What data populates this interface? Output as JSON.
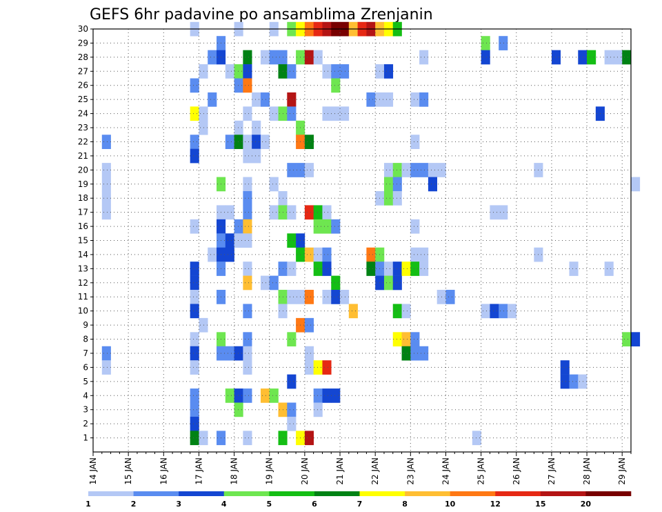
{
  "chart_data": {
    "type": "heatmap",
    "title": "GEFS 6hr padavine po ansamblima Zrenjanin",
    "x_tick_labels": [
      "14 JAN",
      "15 JAN",
      "16 JAN",
      "17 JAN",
      "18 JAN",
      "19 JAN",
      "20 JAN",
      "21 JAN",
      "22 JAN",
      "23 JAN",
      "24 JAN",
      "25 JAN",
      "26 JAN",
      "27 JAN",
      "28 JAN",
      "29 JAN"
    ],
    "y_tick_labels": [
      "1",
      "2",
      "3",
      "4",
      "5",
      "6",
      "7",
      "8",
      "9",
      "10",
      "11",
      "12",
      "13",
      "14",
      "15",
      "16",
      "17",
      "18",
      "19",
      "20",
      "21",
      "22",
      "23",
      "24",
      "25",
      "26",
      "27",
      "28",
      "29",
      "30"
    ],
    "x_unit": "6h steps from 14 JAN 00Z",
    "xlim": [
      0,
      61
    ],
    "ylim": [
      0,
      30
    ],
    "grid": true,
    "legend": {
      "placement": "bottom",
      "labels": [
        "1",
        "2",
        "3",
        "4",
        "5",
        "6",
        "7",
        "8",
        "10",
        "12",
        "15",
        "20"
      ],
      "colors": [
        "#b4c8f5",
        "#5a8cf0",
        "#1446d2",
        "#6ee650",
        "#14be14",
        "#008214",
        "#ffff00",
        "#ffbe32",
        "#ff7814",
        "#e62814",
        "#b41414",
        "#780000"
      ]
    },
    "color_levels": [
      "#b4c8f5",
      "#5a8cf0",
      "#1446d2",
      "#6ee650",
      "#14be14",
      "#008214",
      "#ffff00",
      "#ffbe32",
      "#ff7814",
      "#e62814",
      "#b41414",
      "#780000"
    ],
    "cells": [
      [
        30,
        11,
        0
      ],
      [
        30,
        16,
        0
      ],
      [
        30,
        20,
        0
      ],
      [
        30,
        22,
        3
      ],
      [
        30,
        23,
        6
      ],
      [
        30,
        24,
        8
      ],
      [
        30,
        25,
        9
      ],
      [
        30,
        26,
        10
      ],
      [
        30,
        27,
        11
      ],
      [
        30,
        28,
        11
      ],
      [
        30,
        29,
        7
      ],
      [
        30,
        30,
        9
      ],
      [
        30,
        31,
        10
      ],
      [
        30,
        32,
        7
      ],
      [
        30,
        33,
        6
      ],
      [
        30,
        34,
        4
      ],
      [
        29,
        14,
        1
      ],
      [
        29,
        44,
        3
      ],
      [
        29,
        46,
        1
      ],
      [
        28,
        13,
        1
      ],
      [
        28,
        14,
        2
      ],
      [
        28,
        17,
        5
      ],
      [
        28,
        19,
        0
      ],
      [
        28,
        20,
        1
      ],
      [
        28,
        21,
        1
      ],
      [
        28,
        23,
        3
      ],
      [
        28,
        24,
        10
      ],
      [
        28,
        25,
        0
      ],
      [
        28,
        37,
        0
      ],
      [
        28,
        44,
        2
      ],
      [
        28,
        52,
        2
      ],
      [
        28,
        55,
        2
      ],
      [
        28,
        56,
        4
      ],
      [
        28,
        58,
        0
      ],
      [
        28,
        59,
        0
      ],
      [
        28,
        60,
        5
      ],
      [
        27,
        12,
        0
      ],
      [
        27,
        15,
        0
      ],
      [
        27,
        16,
        3
      ],
      [
        27,
        17,
        2
      ],
      [
        27,
        21,
        5
      ],
      [
        27,
        22,
        1
      ],
      [
        27,
        26,
        0
      ],
      [
        27,
        27,
        1
      ],
      [
        27,
        28,
        1
      ],
      [
        27,
        32,
        0
      ],
      [
        27,
        33,
        2
      ],
      [
        26,
        11,
        1
      ],
      [
        26,
        16,
        1
      ],
      [
        26,
        17,
        8
      ],
      [
        26,
        27,
        3
      ],
      [
        25,
        13,
        1
      ],
      [
        25,
        18,
        0
      ],
      [
        25,
        19,
        1
      ],
      [
        25,
        22,
        10
      ],
      [
        25,
        31,
        1
      ],
      [
        25,
        32,
        0
      ],
      [
        25,
        33,
        0
      ],
      [
        25,
        36,
        0
      ],
      [
        25,
        37,
        1
      ],
      [
        24,
        11,
        6
      ],
      [
        24,
        12,
        0
      ],
      [
        24,
        17,
        0
      ],
      [
        24,
        20,
        0
      ],
      [
        24,
        21,
        3
      ],
      [
        24,
        22,
        1
      ],
      [
        24,
        26,
        0
      ],
      [
        24,
        27,
        0
      ],
      [
        24,
        28,
        0
      ],
      [
        24,
        57,
        2
      ],
      [
        23,
        12,
        0
      ],
      [
        23,
        16,
        0
      ],
      [
        23,
        18,
        0
      ],
      [
        23,
        23,
        3
      ],
      [
        22,
        1,
        1
      ],
      [
        22,
        11,
        1
      ],
      [
        22,
        15,
        1
      ],
      [
        22,
        16,
        5
      ],
      [
        22,
        17,
        0
      ],
      [
        22,
        18,
        2
      ],
      [
        22,
        19,
        0
      ],
      [
        22,
        23,
        8
      ],
      [
        22,
        24,
        5
      ],
      [
        22,
        36,
        0
      ],
      [
        21,
        11,
        2
      ],
      [
        21,
        17,
        0
      ],
      [
        21,
        18,
        0
      ],
      [
        20,
        1,
        0
      ],
      [
        20,
        22,
        1
      ],
      [
        20,
        23,
        1
      ],
      [
        20,
        24,
        0
      ],
      [
        20,
        33,
        0
      ],
      [
        20,
        34,
        3
      ],
      [
        20,
        35,
        0
      ],
      [
        20,
        36,
        1
      ],
      [
        20,
        37,
        1
      ],
      [
        20,
        38,
        0
      ],
      [
        20,
        39,
        0
      ],
      [
        20,
        50,
        0
      ],
      [
        19,
        1,
        0
      ],
      [
        19,
        14,
        3
      ],
      [
        19,
        17,
        0
      ],
      [
        19,
        20,
        0
      ],
      [
        19,
        33,
        3
      ],
      [
        19,
        34,
        1
      ],
      [
        19,
        38,
        2
      ],
      [
        19,
        61,
        0
      ],
      [
        18,
        1,
        0
      ],
      [
        18,
        17,
        1
      ],
      [
        18,
        21,
        0
      ],
      [
        18,
        32,
        0
      ],
      [
        18,
        33,
        3
      ],
      [
        18,
        34,
        0
      ],
      [
        17,
        1,
        0
      ],
      [
        17,
        14,
        0
      ],
      [
        17,
        15,
        0
      ],
      [
        17,
        17,
        1
      ],
      [
        17,
        20,
        0
      ],
      [
        17,
        21,
        3
      ],
      [
        17,
        22,
        0
      ],
      [
        17,
        24,
        9
      ],
      [
        17,
        25,
        4
      ],
      [
        17,
        26,
        0
      ],
      [
        17,
        45,
        0
      ],
      [
        17,
        46,
        0
      ],
      [
        16,
        11,
        0
      ],
      [
        16,
        14,
        2
      ],
      [
        16,
        16,
        1
      ],
      [
        16,
        17,
        7
      ],
      [
        16,
        25,
        3
      ],
      [
        16,
        26,
        3
      ],
      [
        16,
        27,
        1
      ],
      [
        16,
        36,
        0
      ],
      [
        15,
        14,
        1
      ],
      [
        15,
        15,
        2
      ],
      [
        15,
        16,
        0
      ],
      [
        15,
        17,
        0
      ],
      [
        15,
        22,
        4
      ],
      [
        15,
        23,
        2
      ],
      [
        14,
        13,
        0
      ],
      [
        14,
        14,
        2
      ],
      [
        14,
        15,
        2
      ],
      [
        14,
        23,
        4
      ],
      [
        14,
        24,
        7
      ],
      [
        14,
        25,
        0
      ],
      [
        14,
        26,
        1
      ],
      [
        14,
        31,
        8
      ],
      [
        14,
        32,
        3
      ],
      [
        14,
        36,
        0
      ],
      [
        14,
        37,
        0
      ],
      [
        14,
        50,
        0
      ],
      [
        13,
        11,
        2
      ],
      [
        13,
        14,
        1
      ],
      [
        13,
        17,
        0
      ],
      [
        13,
        21,
        1
      ],
      [
        13,
        22,
        0
      ],
      [
        13,
        25,
        4
      ],
      [
        13,
        26,
        2
      ],
      [
        13,
        31,
        5
      ],
      [
        13,
        32,
        1
      ],
      [
        13,
        33,
        0
      ],
      [
        13,
        34,
        2
      ],
      [
        13,
        35,
        6
      ],
      [
        13,
        36,
        4
      ],
      [
        13,
        37,
        0
      ],
      [
        13,
        54,
        0
      ],
      [
        13,
        58,
        0
      ],
      [
        12,
        11,
        2
      ],
      [
        12,
        17,
        7
      ],
      [
        12,
        19,
        0
      ],
      [
        12,
        20,
        1
      ],
      [
        12,
        27,
        4
      ],
      [
        12,
        32,
        2
      ],
      [
        12,
        33,
        3
      ],
      [
        12,
        34,
        2
      ],
      [
        11,
        11,
        0
      ],
      [
        11,
        14,
        1
      ],
      [
        11,
        21,
        3
      ],
      [
        11,
        22,
        0
      ],
      [
        11,
        23,
        0
      ],
      [
        11,
        24,
        8
      ],
      [
        11,
        26,
        0
      ],
      [
        11,
        27,
        2
      ],
      [
        11,
        28,
        0
      ],
      [
        11,
        39,
        0
      ],
      [
        11,
        40,
        1
      ],
      [
        10,
        11,
        2
      ],
      [
        10,
        17,
        1
      ],
      [
        10,
        21,
        0
      ],
      [
        10,
        29,
        7
      ],
      [
        10,
        34,
        4
      ],
      [
        10,
        35,
        0
      ],
      [
        10,
        44,
        0
      ],
      [
        10,
        45,
        2
      ],
      [
        10,
        46,
        1
      ],
      [
        10,
        47,
        0
      ],
      [
        9,
        12,
        0
      ],
      [
        9,
        23,
        8
      ],
      [
        9,
        24,
        1
      ],
      [
        8,
        11,
        0
      ],
      [
        8,
        14,
        3
      ],
      [
        8,
        17,
        1
      ],
      [
        8,
        22,
        3
      ],
      [
        8,
        34,
        6
      ],
      [
        8,
        35,
        7
      ],
      [
        8,
        36,
        1
      ],
      [
        8,
        60,
        3
      ],
      [
        8,
        61,
        2
      ],
      [
        7,
        1,
        1
      ],
      [
        7,
        11,
        2
      ],
      [
        7,
        14,
        1
      ],
      [
        7,
        15,
        1
      ],
      [
        7,
        16,
        2
      ],
      [
        7,
        17,
        0
      ],
      [
        7,
        24,
        0
      ],
      [
        7,
        35,
        5
      ],
      [
        7,
        36,
        1
      ],
      [
        7,
        37,
        1
      ],
      [
        6,
        1,
        0
      ],
      [
        6,
        11,
        0
      ],
      [
        6,
        17,
        0
      ],
      [
        6,
        24,
        0
      ],
      [
        6,
        25,
        6
      ],
      [
        6,
        26,
        9
      ],
      [
        6,
        53,
        2
      ],
      [
        5,
        22,
        2
      ],
      [
        5,
        53,
        2
      ],
      [
        5,
        54,
        1
      ],
      [
        5,
        55,
        0
      ],
      [
        4,
        11,
        1
      ],
      [
        4,
        15,
        3
      ],
      [
        4,
        16,
        2
      ],
      [
        4,
        17,
        1
      ],
      [
        4,
        19,
        7
      ],
      [
        4,
        20,
        3
      ],
      [
        4,
        25,
        1
      ],
      [
        4,
        26,
        2
      ],
      [
        4,
        27,
        2
      ],
      [
        3,
        11,
        1
      ],
      [
        3,
        16,
        3
      ],
      [
        3,
        21,
        7
      ],
      [
        3,
        22,
        1
      ],
      [
        3,
        25,
        0
      ],
      [
        2,
        11,
        2
      ],
      [
        2,
        22,
        0
      ],
      [
        1,
        11,
        5
      ],
      [
        1,
        12,
        0
      ],
      [
        1,
        14,
        1
      ],
      [
        1,
        17,
        0
      ],
      [
        1,
        21,
        4
      ],
      [
        1,
        23,
        6
      ],
      [
        1,
        24,
        10
      ],
      [
        1,
        43,
        0
      ]
    ]
  }
}
